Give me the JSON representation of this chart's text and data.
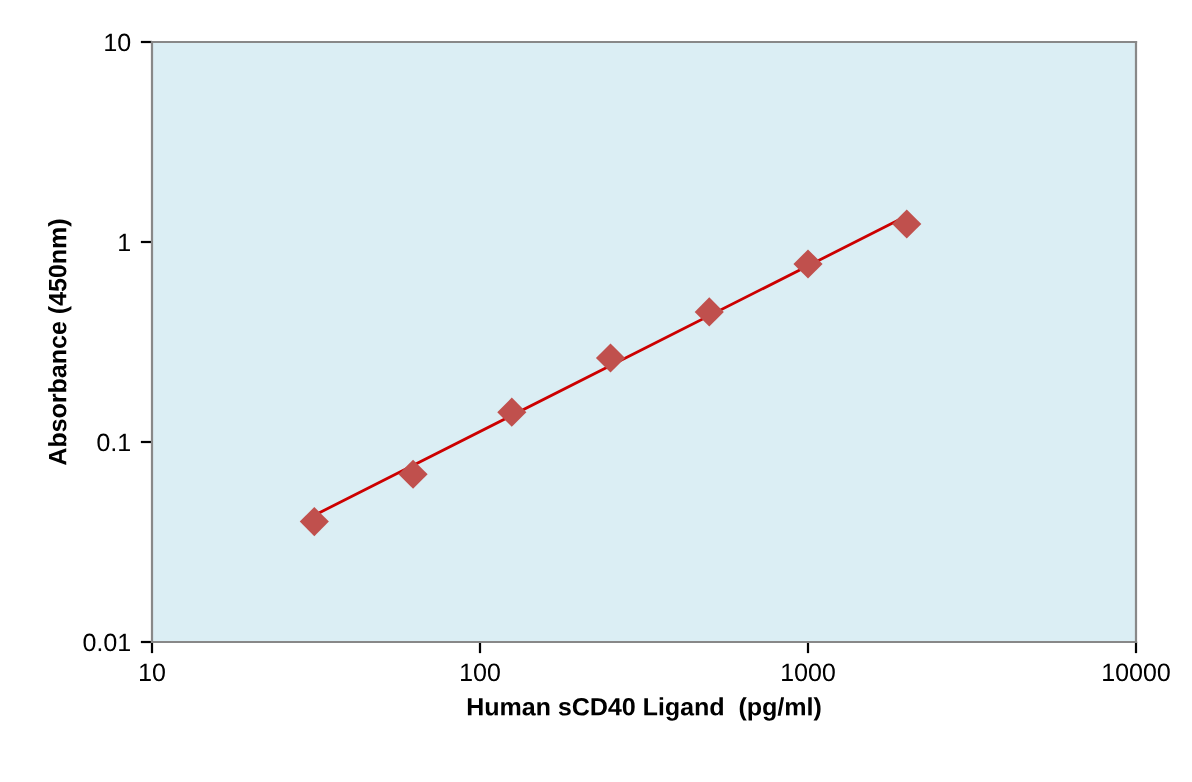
{
  "chart_data": {
    "type": "scatter",
    "xlabel": "Human sCD40 Ligand  (pg/ml)",
    "ylabel": "Absorbance (450nm)",
    "log": "xy",
    "xlim": [
      10,
      10000
    ],
    "xticks": [
      10,
      100,
      1000,
      10000
    ],
    "ylim": [
      0.01,
      10
    ],
    "yticks": [
      0.01,
      0.1,
      1,
      10
    ],
    "grid": false,
    "series": [
      {
        "type": "line",
        "color": "#cc0000",
        "x": [
          31.25,
          2000
        ],
        "values": [
          0.043,
          1.35
        ],
        "marker": "none",
        "line_style": "solid"
      },
      {
        "color": "#c0504d",
        "x": [
          31.25,
          62.5,
          125,
          250,
          500,
          1000,
          2000
        ],
        "values": [
          0.04,
          0.069,
          0.141,
          0.263,
          0.447,
          0.776,
          1.23
        ],
        "marker": "diamond"
      }
    ]
  }
}
